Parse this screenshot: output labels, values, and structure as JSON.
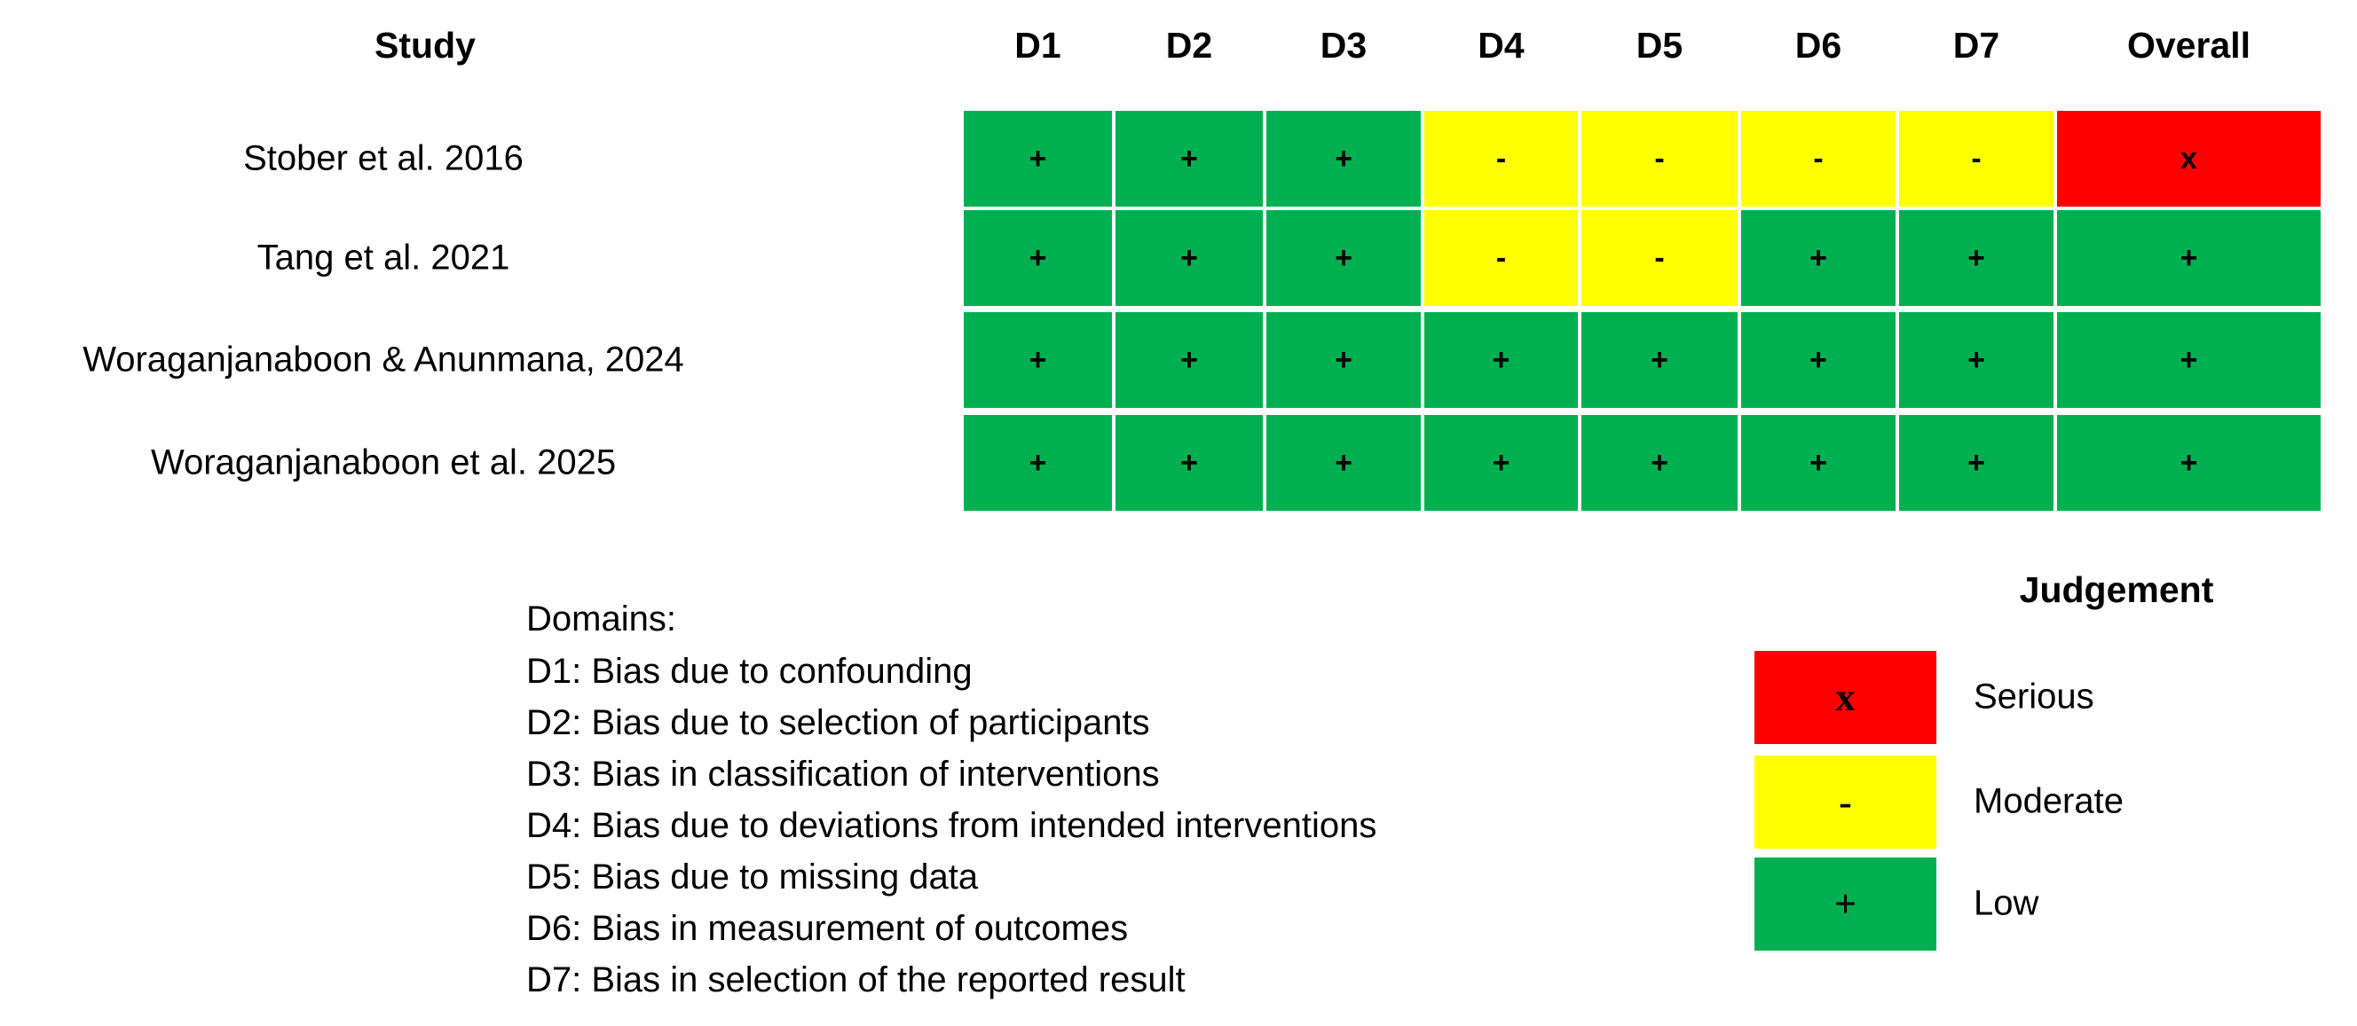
{
  "table": {
    "header": [
      "Study",
      "D1",
      "D2",
      "D3",
      "D4",
      "D5",
      "D6",
      "D7",
      "Overall"
    ],
    "rows": [
      [
        "Stober et al. 2016",
        "+",
        "+",
        "+",
        "-",
        "-",
        "-",
        "-",
        "x"
      ],
      [
        "Tang et al. 2021",
        "+",
        "+",
        "+",
        "-",
        "-",
        "+",
        "+",
        "+"
      ],
      [
        "Woraganjanaboon & Anunmana, 2024",
        "+",
        "+",
        "+",
        "+",
        "+",
        "+",
        "+",
        "+"
      ],
      [
        "Woraganjanaboon et al. 2025",
        "+",
        "+",
        "+",
        "+",
        "+",
        "+",
        "+",
        "+"
      ]
    ]
  },
  "domains": {
    "title": "Domains:",
    "items": [
      "D1: Bias due to confounding",
      "D2: Bias due to selection of participants",
      "D3: Bias in classification of interventions",
      "D4: Bias due to deviations from intended interventions",
      "D5: Bias due to missing data",
      "D6: Bias in measurement of outcomes",
      "D7: Bias in selection of the reported result"
    ]
  },
  "legend": {
    "title": "Judgement",
    "items": [
      {
        "symbol": "x",
        "label": "Serious",
        "color": "#ff0000"
      },
      {
        "symbol": "-",
        "label": "Moderate",
        "color": "#ffff00"
      },
      {
        "symbol": "+",
        "label": "Low",
        "color": "#00b050"
      }
    ]
  }
}
